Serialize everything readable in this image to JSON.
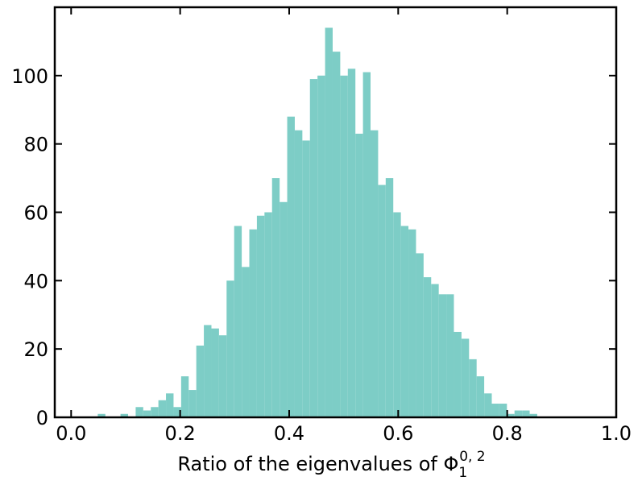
{
  "chart_data": {
    "type": "bar",
    "title": "",
    "xlabel_prefix": "Ratio of the eigenvalues of Φ",
    "xlabel_sub": "1",
    "xlabel_sup": "0, 2",
    "ylabel": "",
    "xlim": [
      -0.03,
      1.0
    ],
    "ylim": [
      0,
      120
    ],
    "xticks": [
      0.0,
      0.2,
      0.4,
      0.6,
      0.8,
      1.0
    ],
    "xtick_labels": [
      "0.0",
      "0.2",
      "0.4",
      "0.6",
      "0.8",
      "1.0"
    ],
    "yticks": [
      0,
      20,
      40,
      60,
      80,
      100
    ],
    "ytick_labels": [
      "0",
      "20",
      "40",
      "60",
      "80",
      "100"
    ],
    "grid": false,
    "legend": false,
    "bar_color": "#7dcdc6",
    "bin_start": 0.035,
    "bin_width": 0.0139,
    "values": [
      0,
      1,
      0,
      0,
      1,
      0,
      3,
      2,
      3,
      5,
      7,
      3,
      12,
      8,
      21,
      27,
      26,
      24,
      40,
      56,
      44,
      55,
      59,
      60,
      70,
      63,
      88,
      84,
      81,
      99,
      100,
      114,
      107,
      100,
      102,
      83,
      101,
      84,
      68,
      70,
      60,
      56,
      55,
      48,
      41,
      39,
      36,
      36,
      25,
      23,
      17,
      12,
      7,
      4,
      4,
      1,
      2,
      2,
      1
    ]
  }
}
